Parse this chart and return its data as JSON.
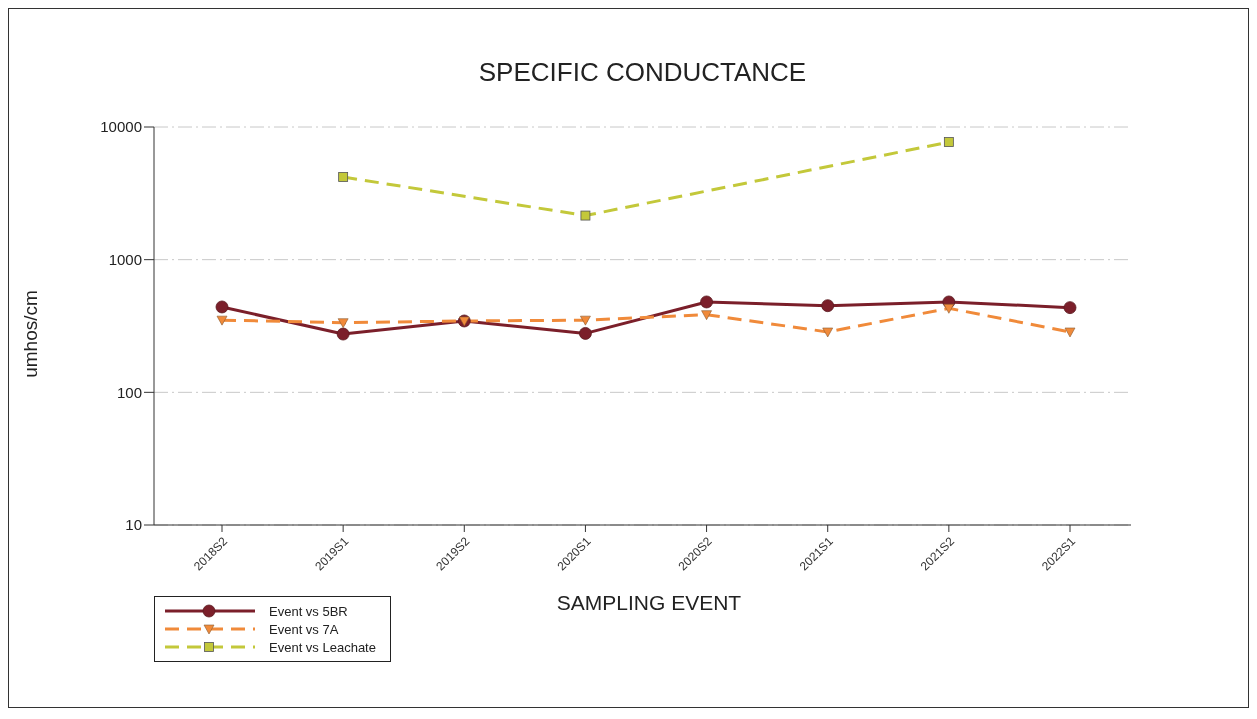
{
  "chart_data": {
    "type": "line",
    "title": "SPECIFIC CONDUCTANCE",
    "xlabel": "SAMPLING EVENT",
    "ylabel": "umhos/cm",
    "categories": [
      "2018S2",
      "2019S1",
      "2019S2",
      "2020S1",
      "2020S2",
      "2021S1",
      "2021S2",
      "2022S1"
    ],
    "series": [
      {
        "name": "Event vs 5BR",
        "color": "#7b1f2a",
        "marker": "circle",
        "line_style": "solid",
        "values": [
          440,
          275,
          345,
          278,
          480,
          450,
          480,
          435
        ]
      },
      {
        "name": "Event vs 7A",
        "color": "#f08a3a",
        "marker": "triangle",
        "line_style": "dashed",
        "values": [
          350,
          335,
          345,
          350,
          385,
          285,
          430,
          285
        ]
      },
      {
        "name": "Event vs Leachate",
        "color": "#c3c83a",
        "marker": "square",
        "line_style": "dashed",
        "values": [
          null,
          4200,
          null,
          2150,
          null,
          null,
          7700,
          null
        ]
      }
    ],
    "log": "y",
    "ylim": [
      10,
      10000
    ],
    "yticks": [
      10,
      100,
      1000,
      10000
    ],
    "grid": "y",
    "legend": "bottom left"
  }
}
